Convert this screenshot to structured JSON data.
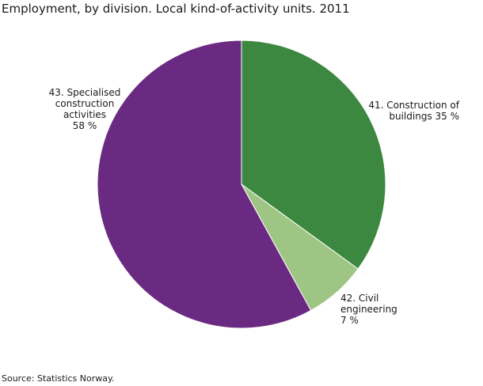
{
  "chart_data": {
    "type": "pie",
    "title": "Employment, by division. Local kind-of-activity units. 2011",
    "slices": [
      {
        "label": "41. Construction of buildings",
        "label_lines": [
          "41. Construction of",
          "buildings 35 %"
        ],
        "value": 35,
        "value_text": "35 %",
        "color": "#3d8841"
      },
      {
        "label": "42. Civil engineering",
        "label_lines": [
          "42. Civil",
          "engineering",
          "7 %"
        ],
        "value": 7,
        "value_text": "7 %",
        "color": "#9fc584"
      },
      {
        "label": "43. Specialised construction activities",
        "label_lines": [
          "43. Specialised",
          "construction",
          "activities",
          "58 %"
        ],
        "value": 58,
        "value_text": "58 %",
        "color": "#6b2a82"
      }
    ],
    "start_angle_deg": 0,
    "direction": "clockwise"
  },
  "source": "Source: Statistics Norway."
}
